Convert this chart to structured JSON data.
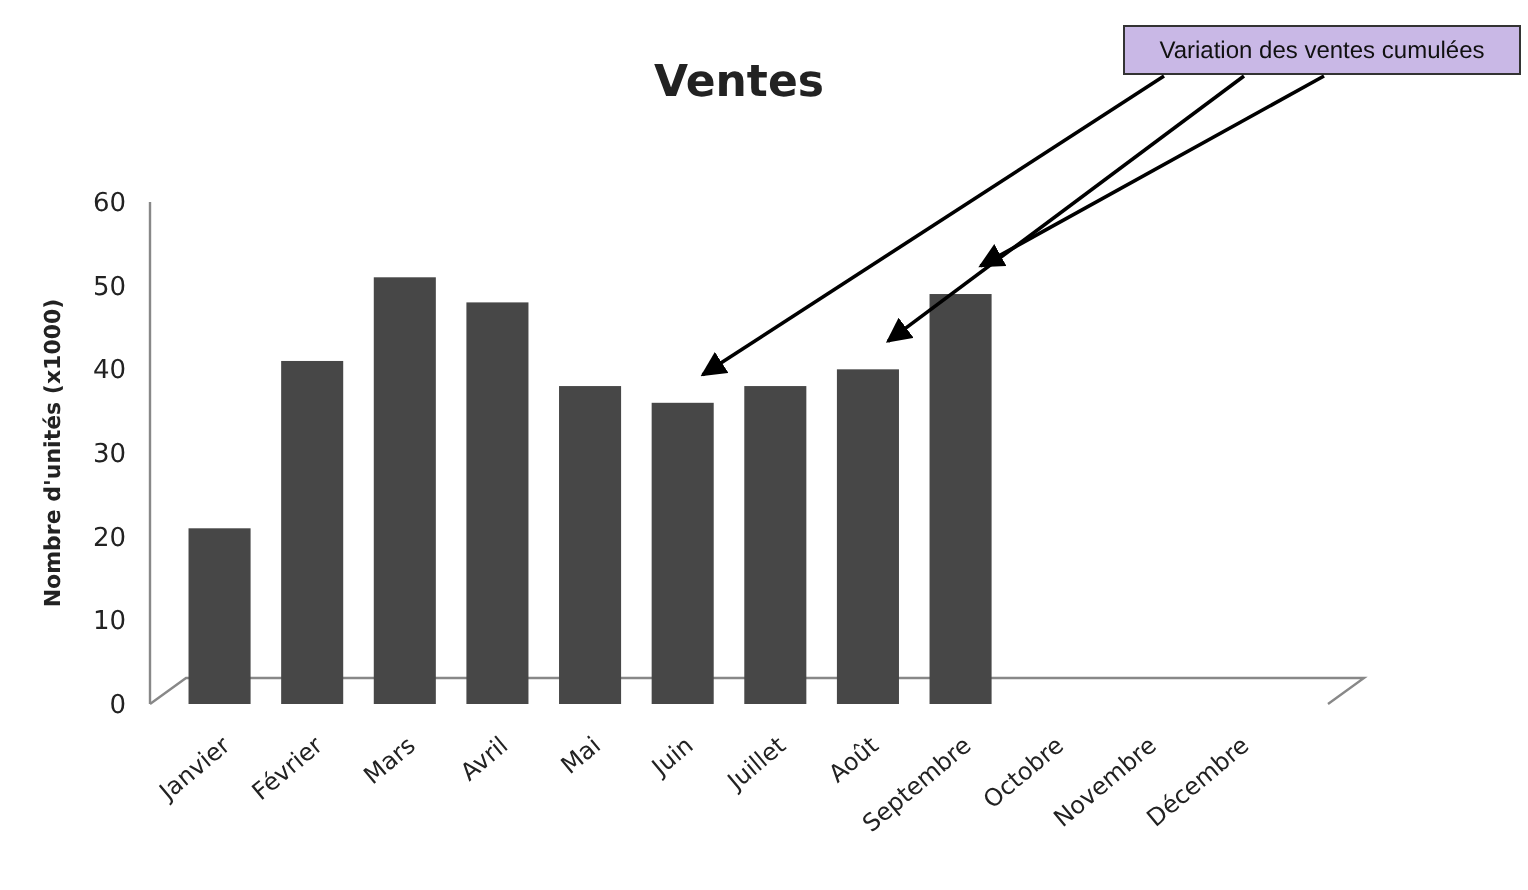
{
  "chart_data": {
    "type": "bar",
    "title": "Ventes",
    "ylabel": "Nombre d'unités (x1000)",
    "categories": [
      "Janvier",
      "Février",
      "Mars",
      "Avril",
      "Mai",
      "Juin",
      "Juillet",
      "Août",
      "Septembre",
      "Octobre",
      "Novembre",
      "Décembre"
    ],
    "values": [
      21,
      41,
      51,
      48,
      38,
      36,
      38,
      40,
      49,
      0,
      0,
      0
    ],
    "color": "#474747",
    "ylim": [
      0,
      60
    ],
    "yticks": [
      0,
      10,
      20,
      30,
      40,
      50,
      60
    ],
    "grid": false,
    "annotations": [
      "Variation des ventes cumulées"
    ]
  }
}
